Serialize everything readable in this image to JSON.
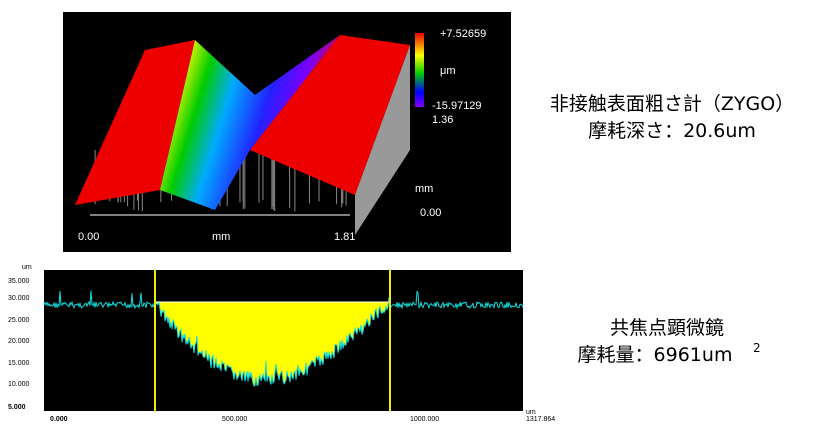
{
  "surface_plot": {
    "z_max": "+7.52659",
    "z_unit": "μm",
    "z_min": "-15.97129",
    "z_extra": "1.36",
    "y_unit": "mm",
    "y_start": "0.00",
    "x_start": "0.00",
    "x_unit": "mm",
    "x_end": "1.81"
  },
  "surface_caption": {
    "line1": "非接触表面粗さ計（ZYGO）",
    "line2": "摩耗深さ：20.6um"
  },
  "profile_plot": {
    "y_unit": "um",
    "y_ticks": [
      "35.000",
      "30.000",
      "25.000",
      "20.000",
      "15.000",
      "10.000",
      "5.000"
    ],
    "x_ticks": [
      "0.000",
      "500.000",
      "1000.000"
    ],
    "x_unit": "um",
    "x_end": "1317.864"
  },
  "profile_caption": {
    "line1": "共焦点顕微鏡",
    "line2": "摩耗量：6961um",
    "line2_sup": "2"
  }
}
